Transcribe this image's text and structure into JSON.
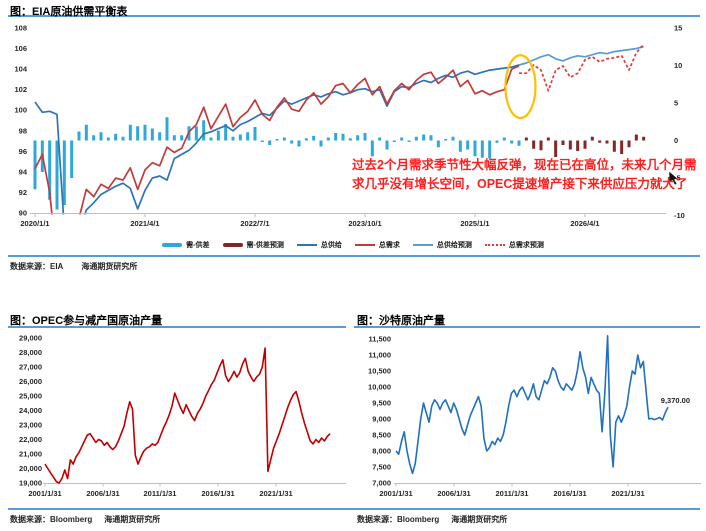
{
  "eia": {
    "title": "图：EIA原油供需平衡表",
    "source_label": "数据来源：EIA",
    "source_org": "海通期货研究所",
    "annotation": "过去2个月需求季节性大幅反弹，现在已在高位，未来几个月需求几乎没有增长空间，OPEC提速增产接下来供应压力就大了",
    "legend": [
      {
        "label": "需-供差",
        "swatch": "bar",
        "color": "#2EA8DC"
      },
      {
        "label": "需-供差预测",
        "swatch": "bar",
        "color": "#852626"
      },
      {
        "label": "总供给",
        "swatch": "line",
        "color": "#2E74B5"
      },
      {
        "label": "总需求",
        "swatch": "line",
        "color": "#C23B3B"
      },
      {
        "label": "总供给预测",
        "swatch": "line",
        "color": "#5B9BD5"
      },
      {
        "label": "总需求预测",
        "swatch": "dash",
        "color": "#E03C36"
      }
    ]
  },
  "opec": {
    "title": "图：OPEC参与减产国原油产量",
    "source_label": "数据来源：Bloomberg",
    "source_org": "海通期货研究所"
  },
  "saudi": {
    "title": "图：沙特原油产量",
    "source_label": "数据来源：Bloomberg",
    "source_org": "海通期货研究所"
  },
  "colors": {
    "rule_blue": "#5B9BD5",
    "axis_gray": "#BFBFBF",
    "tick_text": "#262626",
    "annotation_red": "#FF1E1E",
    "highlight_yellow": "#FFC000"
  },
  "chart_data": [
    {
      "id": "eia_balance",
      "type": "combo-bar-line",
      "title": "图：EIA原油供需平衡表",
      "x_start": "2020-01",
      "x_step_months": 1,
      "x_tick_labels": [
        "2020/1/1",
        "2021/4/1",
        "2022/7/1",
        "2023/10/1",
        "2025/1/1",
        "2026/4/1"
      ],
      "left_ylim": [
        90,
        108
      ],
      "left_yticks": [
        108,
        106,
        104,
        102,
        100,
        98,
        96,
        94,
        92,
        90
      ],
      "right_ylim": [
        -10,
        15
      ],
      "right_yticks": [
        15,
        10,
        5,
        0,
        -5,
        -10
      ],
      "grid": false,
      "legend_position": "bottom",
      "series": [
        {
          "name": "需-供差",
          "axis": "right",
          "type": "bar",
          "color": "#2EA8DC",
          "start_index": 0,
          "values": [
            -6.5,
            -4.2,
            -7.9,
            -9.2,
            -8.6,
            -5.0,
            1.2,
            2.1,
            0.7,
            1.1,
            0.4,
            0.9,
            0.5,
            2.1,
            1.9,
            2.1,
            1.6,
            1.1,
            3.1,
            0.7,
            0.7,
            1.9,
            1.9,
            2.7,
            0.4,
            1.3,
            2.2,
            0.5,
            0.8,
            1.1,
            1.8,
            -0.2,
            -0.6,
            0.2,
            0.4,
            -0.4,
            -0.8,
            0.3,
            0.6,
            -0.8,
            0.4,
            1.0,
            0.9,
            0.3,
            0.7,
            1.0,
            -2.1,
            0.4,
            -1.2,
            -0.2,
            0.4,
            -0.2,
            0.5,
            0.8,
            0.7,
            -0.9,
            0.2,
            0.5,
            -1.5,
            -1.2,
            -2.1,
            -2.3,
            -2.4,
            -0.3,
            0.4,
            -0.4,
            -0.7
          ]
        },
        {
          "name": "需-供差预测",
          "axis": "right",
          "type": "bar",
          "color": "#852626",
          "start_index": 67,
          "values": [
            0.4,
            -1.1,
            -1.3,
            0.4,
            -2.2,
            -0.6,
            -1.2,
            -1.4,
            -1.1,
            0.5,
            -0.3,
            -0.4,
            -1.5,
            -1.8,
            -0.9,
            0.8,
            0.5
          ]
        },
        {
          "name": "总供给",
          "axis": "left",
          "type": "line",
          "color": "#2E74B5",
          "start_index": 0,
          "values": [
            100.8,
            99.8,
            99.9,
            99.6,
            88.5,
            86.0,
            88.0,
            90.3,
            91.0,
            91.8,
            92.2,
            92.6,
            92.9,
            92.4,
            90.4,
            92.2,
            93.4,
            93.6,
            93.2,
            95.3,
            95.7,
            96.1,
            96.8,
            97.7,
            97.9,
            98.2,
            98.5,
            98.0,
            98.6,
            98.9,
            99.3,
            99.7,
            99.5,
            100.2,
            100.9,
            100.6,
            100.9,
            101.2,
            101.5,
            101.3,
            101.6,
            101.8,
            101.5,
            101.7,
            102.0,
            102.1,
            101.8,
            102.0,
            100.4,
            101.8,
            102.3,
            102.2,
            102.6,
            102.9,
            102.7,
            103.1,
            103.4,
            103.2,
            103.6,
            103.8,
            103.5,
            103.7,
            103.9,
            104.0,
            104.1,
            104.2,
            104.4
          ]
        },
        {
          "name": "总需求",
          "axis": "left",
          "type": "line",
          "color": "#C23B3B",
          "start_index": 0,
          "values": [
            94.3,
            95.7,
            92.0,
            85.0,
            83.5,
            86.5,
            89.5,
            92.3,
            91.6,
            92.8,
            92.4,
            93.4,
            93.2,
            94.4,
            92.3,
            94.2,
            94.9,
            94.6,
            96.4,
            95.9,
            96.3,
            97.9,
            98.6,
            100.3,
            98.2,
            99.4,
            100.6,
            98.4,
            99.3,
            99.9,
            101.0,
            99.6,
            99.0,
            100.3,
            101.2,
            100.1,
            99.9,
            101.0,
            101.7,
            100.6,
            101.3,
            102.4,
            102.6,
            101.7,
            102.5,
            103.1,
            101.5,
            102.3,
            100.6,
            101.9,
            102.6,
            102.0,
            102.9,
            103.5,
            103.7,
            102.6,
            103.2,
            103.9,
            102.3,
            102.9,
            101.6,
            101.9,
            101.5,
            101.8,
            102.0,
            104.0,
            104.3
          ]
        },
        {
          "name": "总供给预测",
          "axis": "left",
          "type": "line",
          "color": "#5B9BD5",
          "start_index": 66,
          "values": [
            104.4,
            104.6,
            104.9,
            105.2,
            105.4,
            105.0,
            104.8,
            105.1,
            105.3,
            105.2,
            105.4,
            105.6,
            105.5,
            105.7,
            105.8,
            105.9,
            106.0,
            106.2
          ]
        },
        {
          "name": "总需求预测",
          "axis": "left",
          "type": "line",
          "dash": true,
          "color": "#E03C36",
          "start_index": 66,
          "values": [
            103.6,
            103.6,
            104.4,
            103.9,
            101.9,
            103.9,
            104.3,
            103.2,
            103.6,
            104.9,
            105.2,
            104.7,
            105.0,
            105.1,
            105.3,
            103.9,
            105.6,
            106.4
          ]
        }
      ],
      "highlight_ellipse": {
        "x_index": 66.2,
        "y_value": 102.3,
        "rx_months": 2.05,
        "ry_values": 3.05,
        "color": "#FFC000"
      },
      "annotation": "过去2个月需求季节性大幅反弹，现在已在高位，未来几个月需求几乎没有增长空间，OPEC提速增产接下来供应压力就大了"
    },
    {
      "id": "opec_cut_countries_output",
      "type": "line",
      "title": "图：OPEC参与减产国原油产量",
      "x_range": [
        "2001/1/31",
        "2025/6/30"
      ],
      "x_tick_labels": [
        "2001/1/31",
        "2006/1/31",
        "2011/1/31",
        "2016/1/31",
        "2021/1/31"
      ],
      "ylim": [
        19000,
        29000
      ],
      "yticks": [
        29000,
        28000,
        27000,
        26000,
        25000,
        24000,
        23000,
        22000,
        21000,
        20000,
        19000
      ],
      "ytick_labels": [
        "29,000",
        "28,000",
        "27,000",
        "26,000",
        "25,000",
        "24,000",
        "23,000",
        "22,000",
        "21,000",
        "20,000",
        "19,000"
      ],
      "grid": false,
      "series": [
        {
          "name": "OPEC参与减产国原油产量",
          "color": "#C00000",
          "values": [
            20300,
            20000,
            19700,
            19400,
            19100,
            19000,
            19300,
            19900,
            19300,
            20600,
            20300,
            20800,
            21100,
            21500,
            21900,
            22300,
            22400,
            22100,
            21800,
            22000,
            21900,
            21600,
            21800,
            21500,
            21300,
            21500,
            21900,
            22400,
            22900,
            23800,
            24600,
            24100,
            20900,
            20300,
            20800,
            21200,
            21400,
            21500,
            21700,
            21600,
            21800,
            22300,
            22800,
            23200,
            23700,
            24300,
            25200,
            24700,
            24200,
            23800,
            24400,
            24000,
            23600,
            23300,
            23800,
            24100,
            24500,
            25000,
            25400,
            25800,
            26100,
            26600,
            27100,
            27500,
            26400,
            26000,
            26300,
            26700,
            26300,
            26600,
            27200,
            27600,
            26700,
            26300,
            26000,
            26300,
            26500,
            27000,
            28300,
            19800,
            20600,
            21400,
            21900,
            22400,
            23000,
            23600,
            24200,
            24700,
            25100,
            25300,
            24600,
            23800,
            23100,
            22500,
            21900,
            21700,
            22000,
            21800,
            22100,
            21900,
            22200,
            22400
          ]
        }
      ]
    },
    {
      "id": "saudi_crude_output",
      "type": "line",
      "title": "图：沙特原油产量",
      "x_range": [
        "2001/1/31",
        "2025/6/30"
      ],
      "x_tick_labels": [
        "2001/1/31",
        "2006/1/31",
        "2011/1/31",
        "2016/1/31",
        "2021/1/31"
      ],
      "ylim": [
        7000,
        11500
      ],
      "yticks": [
        11500,
        11000,
        10500,
        10000,
        9500,
        9000,
        8500,
        8000,
        7500,
        7000
      ],
      "ytick_labels": [
        "11,500",
        "11,000",
        "10,500",
        "10,000",
        "9,500",
        "9,000",
        "8,500",
        "8,000",
        "7,500",
        "7,000"
      ],
      "grid": false,
      "last_value": 9370,
      "last_value_label": "9,370.00",
      "series": [
        {
          "name": "沙特原油产量",
          "color": "#2070C0",
          "values": [
            8000,
            7900,
            8300,
            8600,
            8000,
            7600,
            7300,
            7600,
            8300,
            9000,
            9500,
            9200,
            8900,
            9400,
            9600,
            9500,
            9300,
            9500,
            9600,
            9400,
            9200,
            9500,
            9300,
            9000,
            8700,
            8500,
            8800,
            9100,
            9300,
            9500,
            9700,
            9400,
            8400,
            8000,
            8100,
            8300,
            8200,
            8400,
            8300,
            8500,
            8900,
            9400,
            9800,
            9900,
            9700,
            9900,
            10000,
            9800,
            9600,
            9800,
            10100,
            9700,
            9600,
            9900,
            10200,
            10100,
            10300,
            10600,
            10500,
            10200,
            10000,
            9900,
            10100,
            10000,
            9900,
            10100,
            10500,
            11100,
            10600,
            10300,
            9800,
            10300,
            10100,
            9900,
            9800,
            8600,
            9800,
            11600,
            8500,
            7500,
            8900,
            9100,
            8900,
            9100,
            9400,
            10000,
            10500,
            10400,
            11000,
            10600,
            10800,
            9900,
            9000,
            9020,
            8980,
            9010,
            9050,
            8970,
            9200,
            9370
          ]
        }
      ]
    }
  ]
}
